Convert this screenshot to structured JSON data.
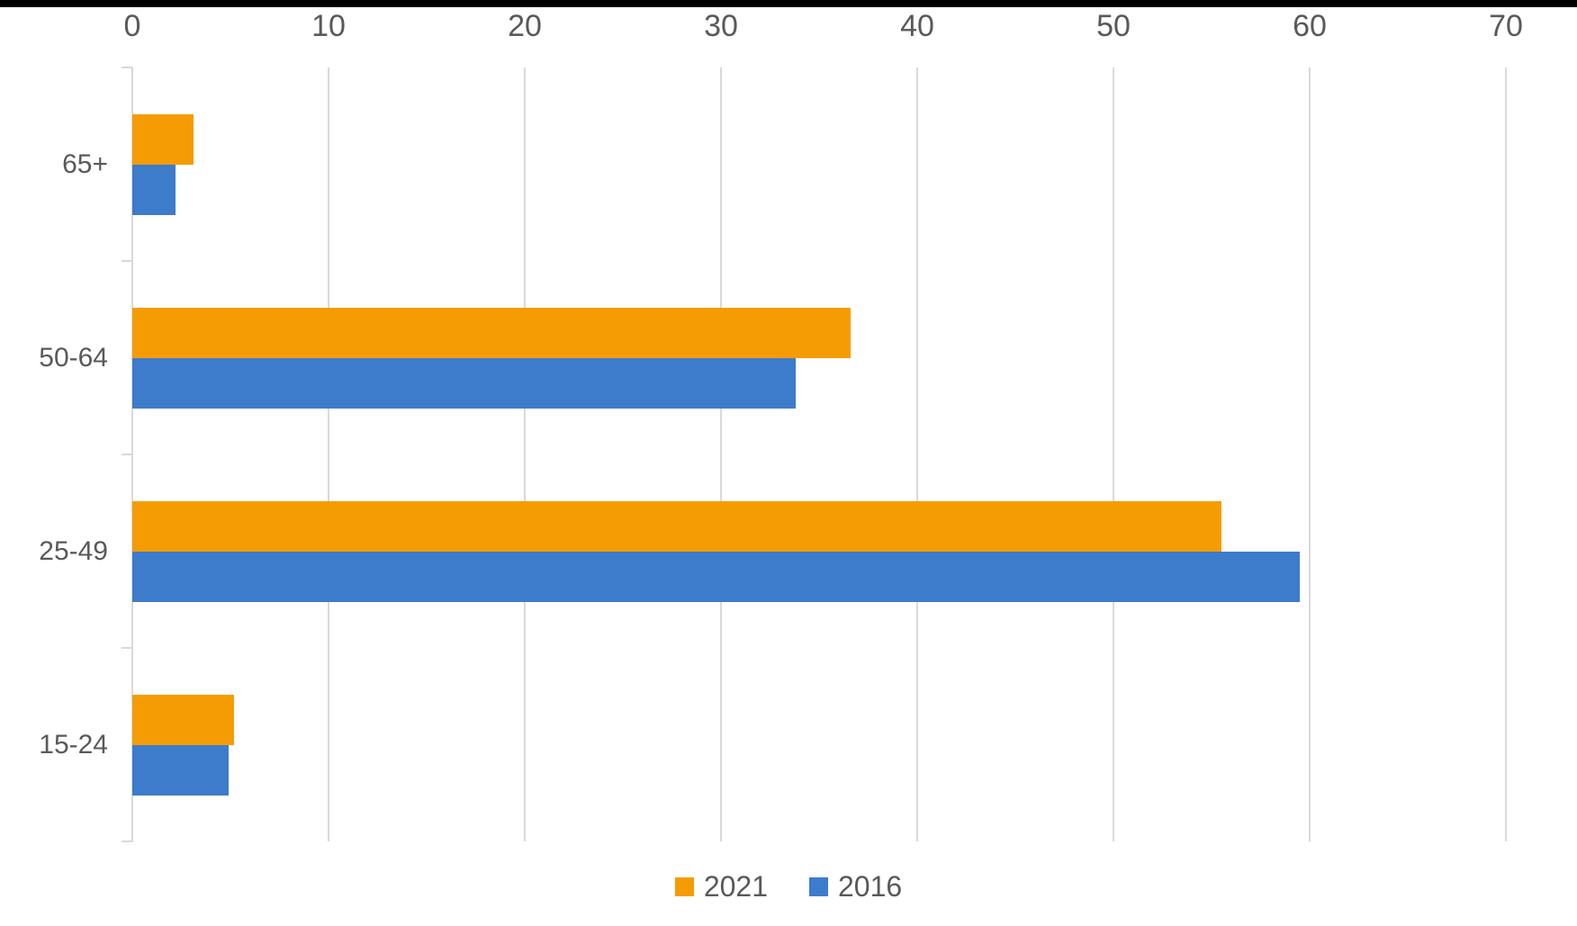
{
  "chart_data": {
    "type": "bar",
    "orientation": "horizontal",
    "title": "",
    "xlabel": "",
    "ylabel": "",
    "categories": [
      "65+",
      "50-64",
      "25-49",
      "15-24"
    ],
    "series": [
      {
        "name": "2021",
        "color": "#F59C04",
        "values": [
          3.1,
          36.6,
          55.5,
          5.2
        ]
      },
      {
        "name": "2016",
        "color": "#3D7BCB",
        "values": [
          2.2,
          33.8,
          59.5,
          4.9
        ]
      }
    ],
    "xlim": [
      0,
      70
    ],
    "xticks": [
      0,
      10,
      20,
      30,
      40,
      50,
      60,
      70
    ],
    "x_axis_position": "top",
    "grid": "vertical",
    "gridline_color": "#D9D9D9",
    "label_color": "#595959",
    "legend_position": "bottom",
    "legend_items": [
      "2021",
      "2016"
    ]
  }
}
